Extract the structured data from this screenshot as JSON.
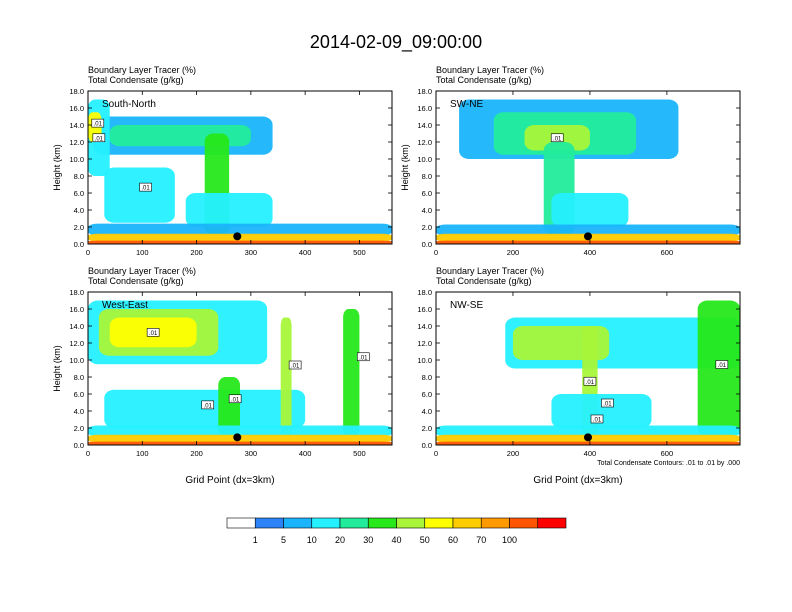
{
  "title": "2014-02-09_09:00:00",
  "chart_data": [
    {
      "type": "heatmap",
      "panel_label": "South-North",
      "title": "Boundary Layer Tracer   (%)",
      "subtitle": "Total Condensate   (g/kg)",
      "xlabel": "",
      "ylabel": "Height (km)",
      "xlim": [
        0,
        560
      ],
      "ylim": [
        0,
        18
      ],
      "xticks": [
        0,
        100,
        200,
        300,
        400,
        500
      ],
      "yticks": [
        0,
        2,
        4,
        6,
        8,
        10,
        12,
        14,
        16,
        18
      ],
      "contour_labels": [
        ".01",
        ".01",
        ".01"
      ],
      "regions": [
        {
          "x": [
            10,
            340
          ],
          "y": [
            10.5,
            15
          ],
          "level": 2
        },
        {
          "x": [
            40,
            300
          ],
          "y": [
            11.5,
            14
          ],
          "level": 4
        },
        {
          "x": [
            0,
            40
          ],
          "y": [
            8,
            17
          ],
          "level": 3
        },
        {
          "x": [
            0,
            25
          ],
          "y": [
            12,
            15.5
          ],
          "level": 7
        },
        {
          "x": [
            30,
            160
          ],
          "y": [
            2.5,
            9
          ],
          "level": 3
        },
        {
          "x": [
            215,
            260
          ],
          "y": [
            1,
            13
          ],
          "level": 5
        },
        {
          "x": [
            180,
            340
          ],
          "y": [
            2,
            6
          ],
          "level": 3
        },
        {
          "x": [
            0,
            560
          ],
          "y": [
            1,
            2.4
          ],
          "level": 2
        },
        {
          "x": [
            0,
            560
          ],
          "y": [
            0.3,
            1.2
          ],
          "level": 8
        },
        {
          "x": [
            0,
            560
          ],
          "y": [
            0,
            0.4
          ],
          "level": 10
        }
      ],
      "marker": {
        "x": 275,
        "y": 0.9
      }
    },
    {
      "type": "heatmap",
      "panel_label": "SW-NE",
      "title": "Boundary Layer Tracer   (%)",
      "subtitle": "Total Condensate   (g/kg)",
      "xlabel": "",
      "ylabel": "Height (km)",
      "xlim": [
        0,
        790
      ],
      "ylim": [
        0,
        18
      ],
      "xticks": [
        0,
        200,
        400,
        600
      ],
      "yticks": [
        0,
        2,
        4,
        6,
        8,
        10,
        12,
        14,
        16,
        18
      ],
      "contour_labels": [
        ".01"
      ],
      "regions": [
        {
          "x": [
            60,
            630
          ],
          "y": [
            10,
            17
          ],
          "level": 2
        },
        {
          "x": [
            150,
            520
          ],
          "y": [
            10.5,
            15.5
          ],
          "level": 4
        },
        {
          "x": [
            230,
            400
          ],
          "y": [
            11,
            14
          ],
          "level": 6
        },
        {
          "x": [
            280,
            360
          ],
          "y": [
            1,
            12
          ],
          "level": 4
        },
        {
          "x": [
            300,
            500
          ],
          "y": [
            2,
            6
          ],
          "level": 3
        },
        {
          "x": [
            0,
            790
          ],
          "y": [
            1,
            2.3
          ],
          "level": 2
        },
        {
          "x": [
            0,
            790
          ],
          "y": [
            0.3,
            1.2
          ],
          "level": 8
        },
        {
          "x": [
            0,
            790
          ],
          "y": [
            0,
            0.4
          ],
          "level": 10
        }
      ],
      "marker": {
        "x": 395,
        "y": 0.9
      }
    },
    {
      "type": "heatmap",
      "panel_label": "West-East",
      "title": "Boundary Layer Tracer   (%)",
      "subtitle": "Total Condensate   (g/kg)",
      "xlabel": "Grid Point (dx=3km)",
      "ylabel": "Height (km)",
      "xlim": [
        0,
        560
      ],
      "ylim": [
        0,
        18
      ],
      "xticks": [
        0,
        100,
        200,
        300,
        400,
        500
      ],
      "yticks": [
        0,
        2,
        4,
        6,
        8,
        10,
        12,
        14,
        16,
        18
      ],
      "contour_labels": [
        ".01",
        ".01",
        ".01",
        ".01",
        ".01"
      ],
      "regions": [
        {
          "x": [
            0,
            330
          ],
          "y": [
            9.5,
            17
          ],
          "level": 3
        },
        {
          "x": [
            20,
            240
          ],
          "y": [
            10.5,
            16
          ],
          "level": 6
        },
        {
          "x": [
            40,
            200
          ],
          "y": [
            11.5,
            15
          ],
          "level": 7
        },
        {
          "x": [
            30,
            400
          ],
          "y": [
            2,
            6.5
          ],
          "level": 3
        },
        {
          "x": [
            240,
            280
          ],
          "y": [
            1,
            8
          ],
          "level": 5
        },
        {
          "x": [
            355,
            375
          ],
          "y": [
            1,
            15
          ],
          "level": 6
        },
        {
          "x": [
            470,
            500
          ],
          "y": [
            1,
            16
          ],
          "level": 5
        },
        {
          "x": [
            0,
            560
          ],
          "y": [
            1,
            2.3
          ],
          "level": 3
        },
        {
          "x": [
            0,
            560
          ],
          "y": [
            0.3,
            1.2
          ],
          "level": 8
        },
        {
          "x": [
            0,
            560
          ],
          "y": [
            0,
            0.4
          ],
          "level": 10
        }
      ],
      "marker": {
        "x": 275,
        "y": 0.9
      }
    },
    {
      "type": "heatmap",
      "panel_label": "NW-SE",
      "title": "Boundary Layer Tracer   (%)",
      "subtitle": "Total Condensate   (g/kg)",
      "xlabel": "Grid Point (dx=3km)",
      "ylabel": "",
      "xlim": [
        0,
        790
      ],
      "ylim": [
        0,
        18
      ],
      "xticks": [
        0,
        200,
        400,
        600
      ],
      "yticks": [
        0,
        2,
        4,
        6,
        8,
        10,
        12,
        14,
        16,
        18
      ],
      "contour_labels": [
        ".01",
        ".01",
        ".01",
        ".01"
      ],
      "annotation": "Total Condensate Contours: .01 to .01 by .000",
      "regions": [
        {
          "x": [
            180,
            790
          ],
          "y": [
            9,
            15
          ],
          "level": 3
        },
        {
          "x": [
            200,
            450
          ],
          "y": [
            10,
            14
          ],
          "level": 6
        },
        {
          "x": [
            380,
            420
          ],
          "y": [
            1,
            14
          ],
          "level": 6
        },
        {
          "x": [
            680,
            790
          ],
          "y": [
            1,
            17
          ],
          "level": 5
        },
        {
          "x": [
            300,
            560
          ],
          "y": [
            2,
            6
          ],
          "level": 3
        },
        {
          "x": [
            0,
            790
          ],
          "y": [
            1,
            2.3
          ],
          "level": 3
        },
        {
          "x": [
            0,
            790
          ],
          "y": [
            0.3,
            1.2
          ],
          "level": 8
        },
        {
          "x": [
            0,
            790
          ],
          "y": [
            0,
            0.4
          ],
          "level": 10
        }
      ],
      "marker": {
        "x": 395,
        "y": 0.9
      }
    }
  ],
  "colorbar": {
    "labels": [
      "1",
      "5",
      "10",
      "20",
      "30",
      "40",
      "50",
      "60",
      "70",
      "100"
    ],
    "colors": [
      "#ffffff",
      "#2b83f7",
      "#19b4fb",
      "#25f0ff",
      "#22ec9b",
      "#26e81a",
      "#a8f53a",
      "#ffff00",
      "#ffcc00",
      "#ff9900",
      "#ff5500",
      "#ff0000"
    ]
  }
}
